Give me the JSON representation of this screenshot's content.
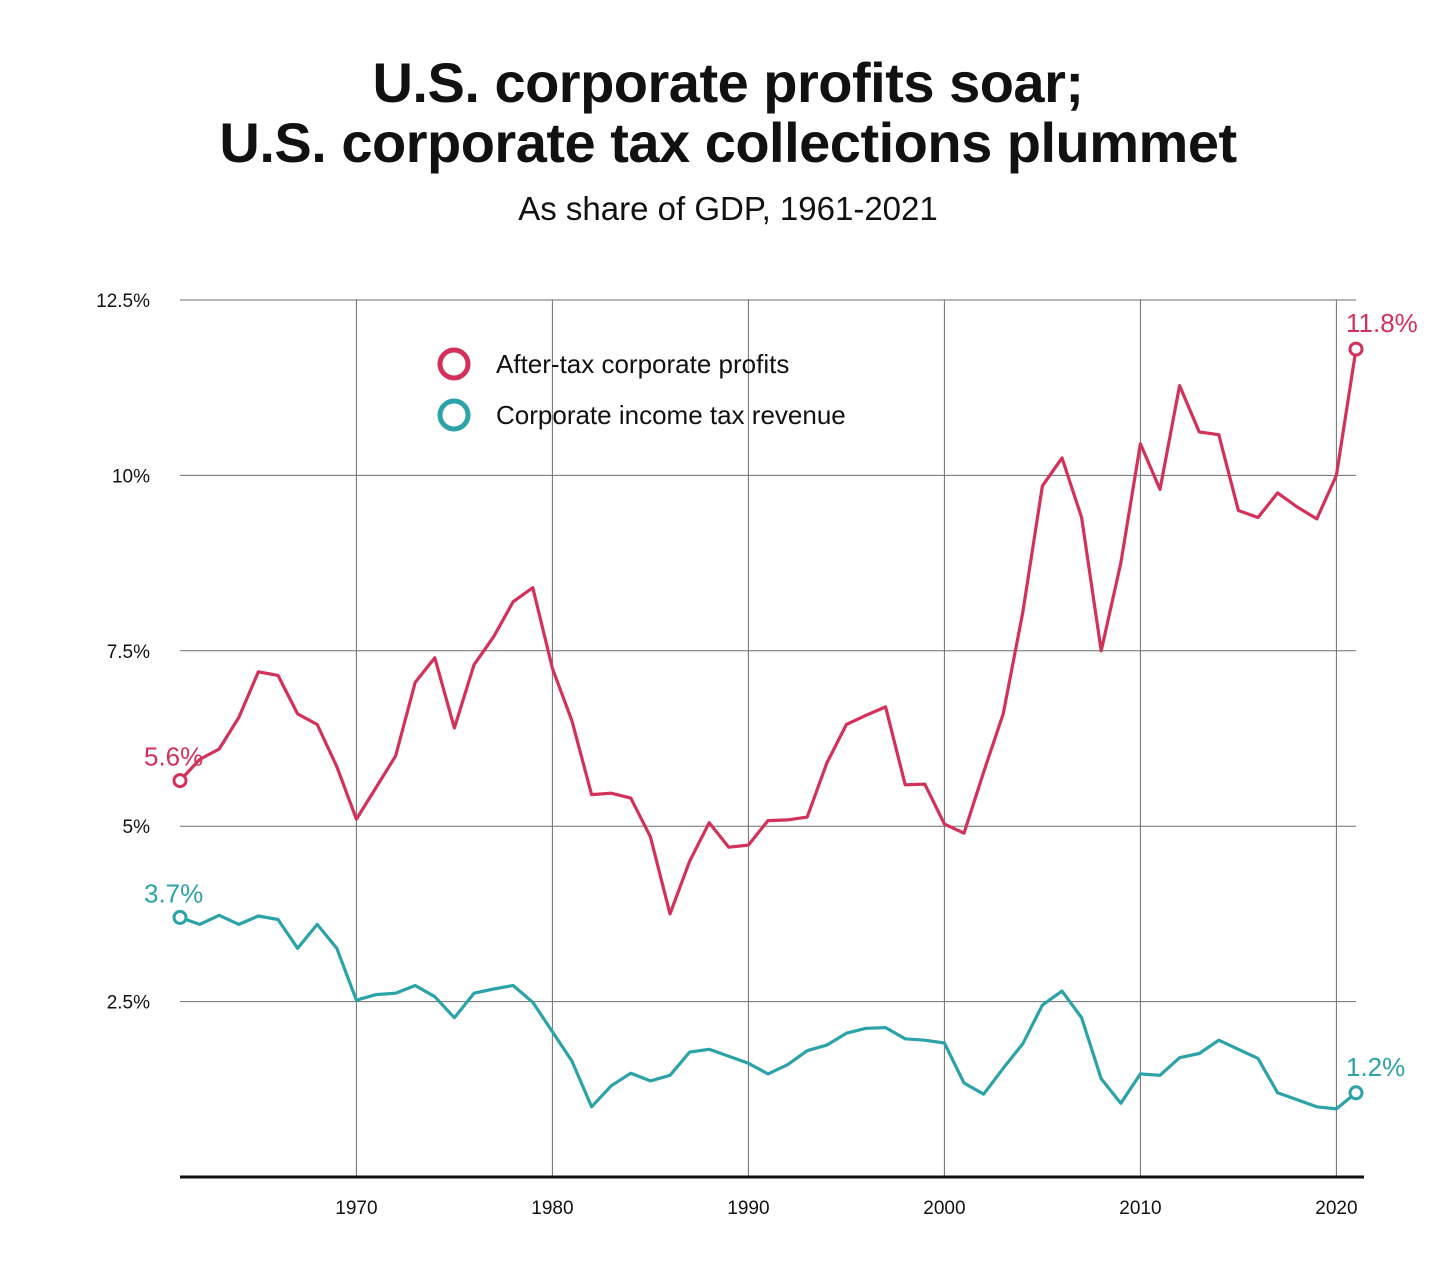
{
  "title_line1": "U.S. corporate profits soar;",
  "title_line2": "U.S. corporate tax collections plummet",
  "subtitle": "As share of GDP, 1961-2021",
  "chart_data": {
    "type": "line",
    "title": "U.S. corporate profits soar; U.S. corporate tax collections plummet",
    "subtitle": "As share of GDP, 1961-2021",
    "xlabel": "",
    "ylabel": "",
    "xlim": [
      1961,
      2021
    ],
    "ylim": [
      0,
      12.5
    ],
    "grid": true,
    "legend_position": "top-left",
    "y_ticks": [
      {
        "value": 2.5,
        "label": "2.5%"
      },
      {
        "value": 5,
        "label": "5%"
      },
      {
        "value": 7.5,
        "label": "7.5%"
      },
      {
        "value": 10,
        "label": "10%"
      },
      {
        "value": 12.5,
        "label": "12.5%"
      }
    ],
    "x_ticks": [
      1970,
      1980,
      1990,
      2000,
      2010,
      2020
    ],
    "x": [
      1961,
      1962,
      1963,
      1964,
      1965,
      1966,
      1967,
      1968,
      1969,
      1970,
      1971,
      1972,
      1973,
      1974,
      1975,
      1976,
      1977,
      1978,
      1979,
      1980,
      1981,
      1982,
      1983,
      1984,
      1985,
      1986,
      1987,
      1988,
      1989,
      1990,
      1991,
      1992,
      1993,
      1994,
      1995,
      1996,
      1997,
      1998,
      1999,
      2000,
      2001,
      2002,
      2003,
      2004,
      2005,
      2006,
      2007,
      2008,
      2009,
      2010,
      2011,
      2012,
      2013,
      2014,
      2015,
      2016,
      2017,
      2018,
      2019,
      2020,
      2021
    ],
    "series": [
      {
        "name": "After-tax corporate profits",
        "color": "#d4315a",
        "values": [
          5.65,
          5.95,
          6.1,
          6.55,
          7.2,
          7.15,
          6.6,
          6.45,
          5.85,
          5.1,
          5.55,
          6.0,
          7.05,
          7.4,
          6.4,
          7.3,
          7.7,
          8.2,
          8.4,
          7.25,
          6.5,
          5.45,
          5.47,
          5.4,
          4.85,
          3.75,
          4.5,
          5.05,
          4.7,
          4.73,
          5.08,
          5.09,
          5.13,
          5.9,
          6.45,
          6.58,
          6.7,
          5.59,
          5.6,
          5.03,
          4.9,
          5.77,
          6.6,
          8.05,
          9.85,
          10.25,
          9.4,
          7.5,
          8.75,
          10.45,
          9.8,
          11.28,
          10.62,
          10.58,
          9.5,
          9.4,
          9.75,
          9.55,
          9.38,
          10.0,
          11.8
        ],
        "end_label": "11.8%",
        "start_label": "5.6%"
      },
      {
        "name": "Corporate income tax revenue",
        "color": "#2ba3a8",
        "values": [
          3.7,
          3.6,
          3.73,
          3.6,
          3.72,
          3.67,
          3.26,
          3.6,
          3.26,
          2.52,
          2.6,
          2.62,
          2.73,
          2.57,
          2.27,
          2.62,
          2.68,
          2.73,
          2.49,
          2.07,
          1.65,
          1.0,
          1.3,
          1.48,
          1.37,
          1.45,
          1.78,
          1.82,
          1.72,
          1.62,
          1.47,
          1.6,
          1.8,
          1.88,
          2.05,
          2.12,
          2.13,
          1.97,
          1.95,
          1.91,
          1.34,
          1.18,
          1.55,
          1.9,
          2.45,
          2.65,
          2.27,
          1.4,
          1.05,
          1.47,
          1.45,
          1.7,
          1.76,
          1.95,
          1.82,
          1.69,
          1.2,
          1.1,
          1.0,
          0.97,
          1.2
        ],
        "end_label": "1.2%",
        "start_label": "3.7%"
      }
    ]
  }
}
